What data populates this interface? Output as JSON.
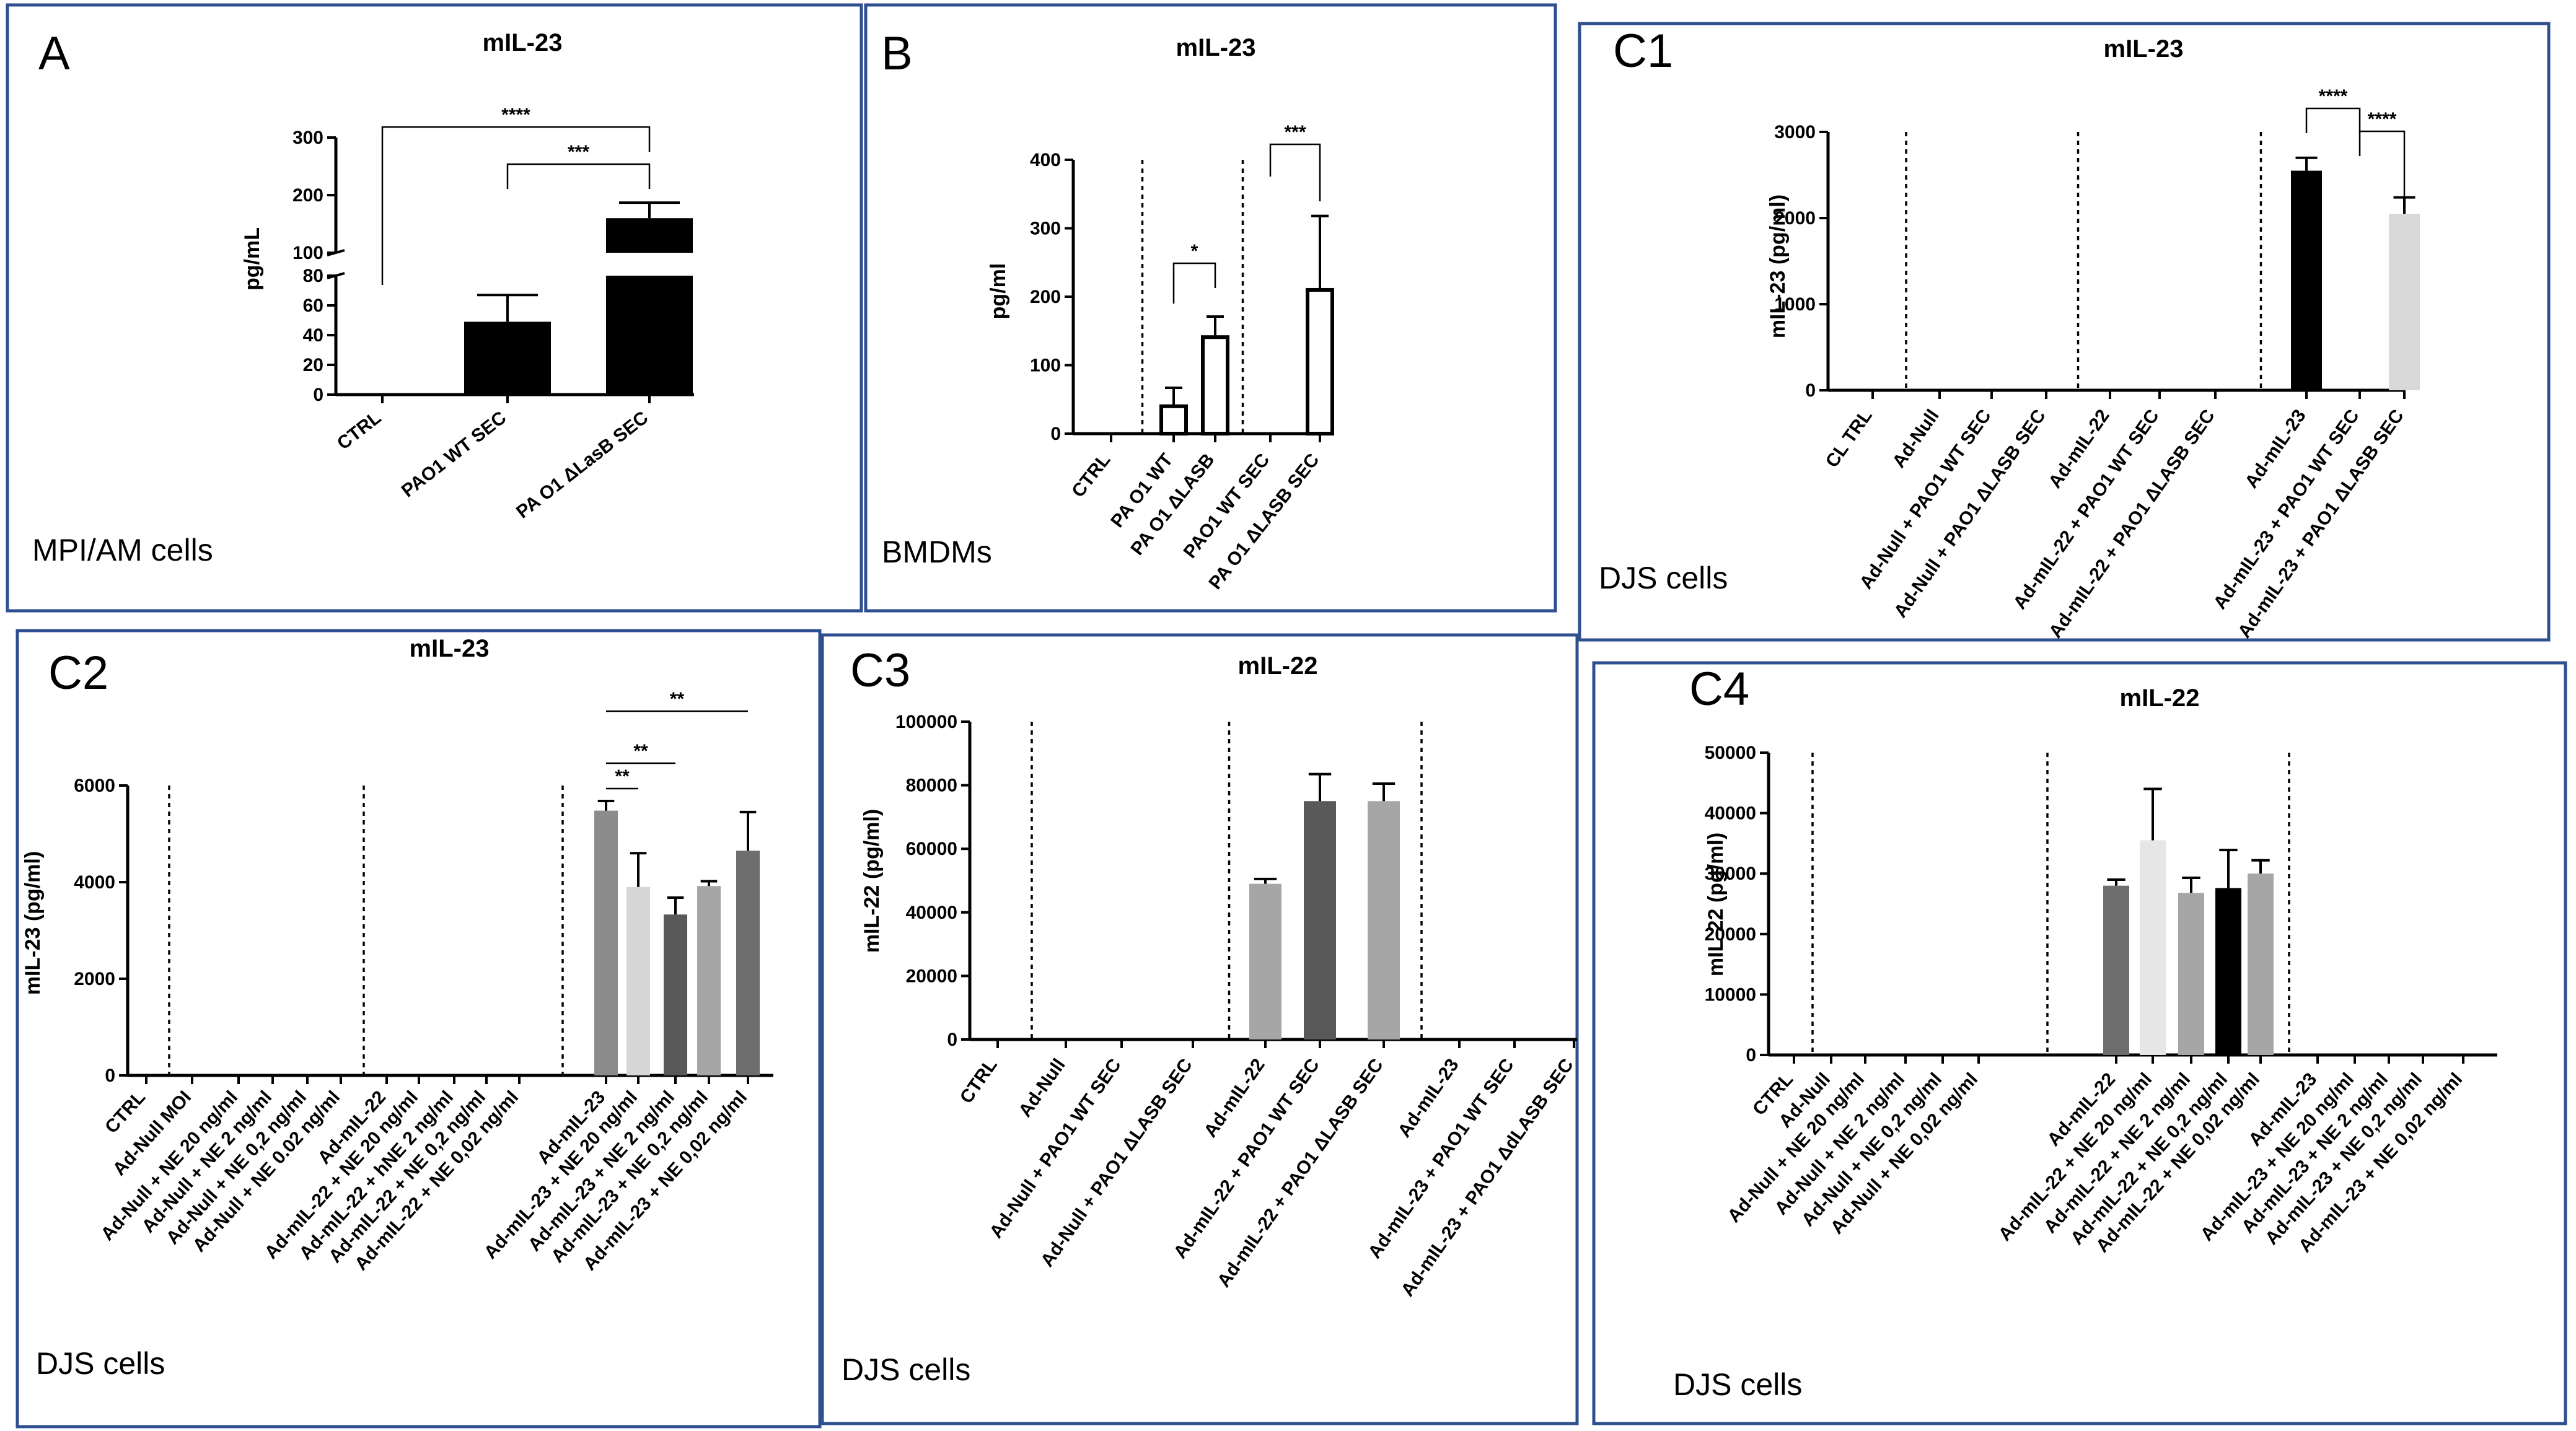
{
  "chart_data": [
    {
      "id": "A",
      "type": "bar",
      "panel_label": "A",
      "title": "mIL-23",
      "ylabel": "pg/mL",
      "ylim": [
        0,
        300
      ],
      "y_axis_break": [
        80,
        100
      ],
      "yticks": [
        0,
        20,
        40,
        60,
        80,
        100,
        200,
        300
      ],
      "categories": [
        "CTRL",
        "PAO1 WT SEC",
        "PA O1 ΔLasB SEC"
      ],
      "values": [
        0,
        49,
        160
      ],
      "errors": [
        0,
        18,
        27
      ],
      "bar_colors": [
        "#000000",
        "#000000",
        "#000000"
      ],
      "significance": [
        {
          "from": 0,
          "to": 2,
          "label": "****"
        },
        {
          "from": 1,
          "to": 2,
          "label": "***"
        }
      ],
      "dividers_after": [],
      "caption": "MPI/AM cells"
    },
    {
      "id": "B",
      "type": "bar",
      "panel_label": "B",
      "title": "mIL-23",
      "ylabel": "pg/ml",
      "ylim": [
        0,
        400
      ],
      "yticks": [
        0,
        100,
        200,
        300,
        400
      ],
      "categories": [
        "CTRL",
        "PA O1 WT",
        "PA O1  ΔLASB",
        "PAO1 WT SEC",
        "PA O1 ΔLASB  SEC"
      ],
      "values": [
        0,
        40,
        141,
        0,
        210
      ],
      "errors": [
        0,
        27,
        30,
        0,
        108
      ],
      "bar_colors": [
        "#ffffff",
        "#ffffff",
        "#ffffff",
        "#ffffff",
        "#ffffff"
      ],
      "significance": [
        {
          "from": 1,
          "to": 2,
          "label": "*"
        },
        {
          "from": 3,
          "to": 4,
          "label": "***"
        }
      ],
      "dividers_after": [
        0,
        2
      ],
      "caption": "BMDMs"
    },
    {
      "id": "C1",
      "type": "bar",
      "panel_label": "C1",
      "title": "mIL-23",
      "ylabel": "mIL-23 (pg/ml)",
      "ylim": [
        0,
        3000
      ],
      "yticks": [
        0,
        1000,
        2000,
        3000
      ],
      "categories": [
        "CL TRL",
        "Ad-Null",
        "Ad-Null + PAO1 WT SEC",
        "Ad-Null + PAO1 ΔLASB  SEC",
        "Ad-mIL-22",
        "Ad-mIL-22 + PAO1 WT SEC",
        "Ad-mIL-22 + PAO1 ΔLASB  SEC",
        "Ad-mIL-23",
        "Ad-mIL-23 + PAO1 WT SEC",
        "Ad-mIL-23 + PAO1 ΔLASB  SEC"
      ],
      "values": [
        0,
        0,
        0,
        0,
        0,
        0,
        0,
        2550,
        0,
        2050
      ],
      "errors": [
        0,
        0,
        0,
        0,
        0,
        0,
        0,
        150,
        0,
        190
      ],
      "bar_colors": [
        "#000000",
        "#000000",
        "#000000",
        "#000000",
        "#000000",
        "#000000",
        "#000000",
        "#000000",
        "#d9d9d9",
        "#d9d9d9"
      ],
      "significance": [
        {
          "from": 7,
          "to": 8,
          "label": "****"
        },
        {
          "from": 8,
          "to": 9,
          "label": "****"
        }
      ],
      "dividers_after": [
        0,
        3,
        6
      ],
      "caption": "DJS cells"
    },
    {
      "id": "C2",
      "type": "bar",
      "panel_label": "C2",
      "title": "mIL-23",
      "ylabel": "mIL-23 (pg/ml)",
      "ylim": [
        0,
        6000
      ],
      "yticks": [
        0,
        2000,
        4000,
        6000
      ],
      "categories": [
        "CTRL",
        "Ad-Null MOI",
        "Ad-Null + NE 20 ng/ml",
        "Ad-Null + NE 2 ng/ml",
        "Ad-Null + NE 0,2 ng/ml",
        "Ad-Null  + NE 0.02 ng/ml",
        "Ad-mIL-22",
        "Ad-mIL-22 + NE 20 ng/ml",
        "Ad-mIL-22 + hNE 2 ng/ml",
        "Ad-mIL-22 + NE 0,2 ng/ml",
        "Ad-mIL-22 + NE 0,02 ng/ml",
        "Ad-mIL-23",
        "Ad-mIL-23 + NE 20 ng/ml",
        "Ad-mIL-23 + NE 2 ng/ml",
        "Ad-mIL-23 + NE 0,2 ng/ml",
        "Ad-mIL-23  + NE 0,02 ng/ml"
      ],
      "values": [
        0,
        0,
        0,
        0,
        0,
        0,
        0,
        0,
        0,
        0,
        0,
        5480,
        3900,
        3330,
        3920,
        4650
      ],
      "errors": [
        0,
        0,
        0,
        0,
        0,
        0,
        0,
        0,
        0,
        0,
        0,
        200,
        700,
        350,
        100,
        800
      ],
      "bar_colors": [
        "#808080",
        "#808080",
        "#808080",
        "#808080",
        "#808080",
        "#808080",
        "#808080",
        "#808080",
        "#808080",
        "#808080",
        "#808080",
        "#8c8c8c",
        "#d6d6d6",
        "#595959",
        "#a6a6a6",
        "#6e6e6e"
      ],
      "significance": [
        {
          "from": 11,
          "to": 12,
          "label": "**"
        },
        {
          "from": 11,
          "to": 13,
          "label": "**"
        },
        {
          "from": 11,
          "to": 15,
          "label": "**"
        }
      ],
      "dividers_after": [
        0,
        5,
        10
      ],
      "caption": "DJS cells"
    },
    {
      "id": "C3",
      "type": "bar",
      "panel_label": "C3",
      "title": "mIL-22",
      "ylabel": "mIL-22 (pg/ml)",
      "ylim": [
        0,
        100000
      ],
      "yticks": [
        0,
        20000,
        40000,
        60000,
        80000,
        100000
      ],
      "categories": [
        "CTRL",
        "Ad-Null",
        "Ad-Null + PAO1 WT SEC",
        "Ad-Null + PAO1 ΔLASB  SEC",
        "Ad-mIL-22",
        "Ad-mIL-22 + PAO1 WT SEC",
        "Ad-mIL-22  + PAO1 ΔLASB  SEC",
        "Ad-mIL-23",
        "Ad-mIL-23 + PAO1 WT SEC",
        "Ad-mIL-23 +  PAO1 ΔdLASB  SEC"
      ],
      "values": [
        0,
        0,
        0,
        0,
        49000,
        75000,
        75000,
        0,
        0,
        0
      ],
      "errors": [
        0,
        0,
        0,
        0,
        1500,
        8500,
        5500,
        0,
        0,
        0
      ],
      "bar_colors": [
        "#808080",
        "#808080",
        "#808080",
        "#808080",
        "#a6a6a6",
        "#595959",
        "#a6a6a6",
        "#808080",
        "#808080",
        "#808080"
      ],
      "significance": [],
      "dividers_after": [
        0,
        3,
        6
      ],
      "caption": "DJS cells"
    },
    {
      "id": "C4",
      "type": "bar",
      "panel_label": "C4",
      "title": "mIL-22",
      "ylabel": "mIL-22 (pg/ml)",
      "ylim": [
        0,
        50000
      ],
      "yticks": [
        0,
        10000,
        20000,
        30000,
        40000,
        50000
      ],
      "categories": [
        "CTRL",
        "Ad-Null",
        "Ad-Null + NE 20 ng/ml",
        "Ad-Null + NE 2 ng/ml",
        "Ad-Null + NE 0,2 ng/ml",
        "Ad-Null + NE 0,02 ng/ml",
        "Ad-mIL-22",
        "Ad-mIL-22 + NE 20 ng/ml",
        "Ad-mIL-22 + NE 2 ng/ml",
        "Ad-mIL-22 + NE 0,2 ng/ml",
        "Ad-mIL-22 + NE 0,02 ng/ml",
        "Ad-mIL-23",
        "Ad-mIL-23 + NE 20 ng/ml",
        "Ad-mIL-23 + NE 2 ng/ml",
        "Ad-mIL-23 + NE 0,2 ng/ml",
        "Ad-mIL-23 + NE 0,02 ng/ml"
      ],
      "values": [
        0,
        0,
        0,
        0,
        0,
        0,
        28000,
        35500,
        26800,
        27600,
        30000,
        0,
        0,
        0,
        0,
        0
      ],
      "errors": [
        0,
        0,
        0,
        0,
        0,
        0,
        1000,
        8500,
        2500,
        6300,
        2200,
        0,
        0,
        0,
        0,
        0
      ],
      "bar_colors": [
        "#808080",
        "#808080",
        "#808080",
        "#808080",
        "#808080",
        "#808080",
        "#6e6e6e",
        "#e6e6e6",
        "#a6a6a6",
        "#000000",
        "#a6a6a6",
        "#808080",
        "#808080",
        "#808080",
        "#808080",
        "#808080"
      ],
      "significance": [],
      "dividers_after": [
        0,
        5,
        10
      ],
      "caption": "DJS cells"
    }
  ]
}
